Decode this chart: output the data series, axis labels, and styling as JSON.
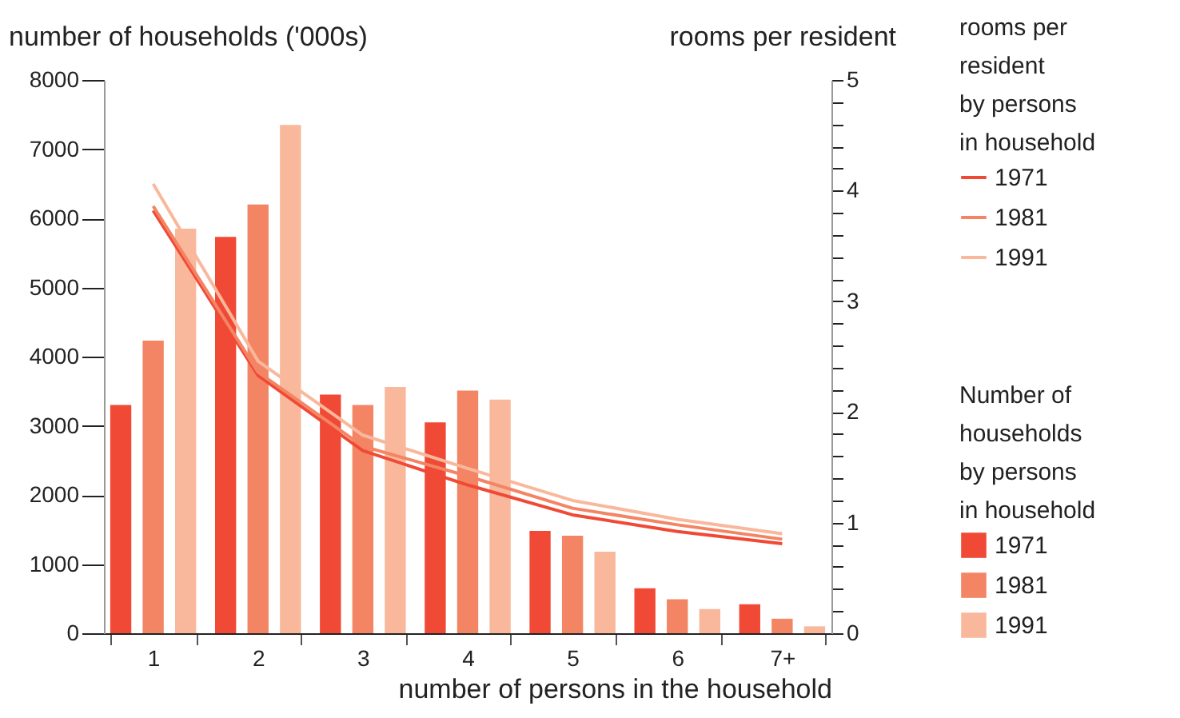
{
  "chart_data": {
    "type": "bar",
    "categories": [
      "1",
      "2",
      "3",
      "4",
      "5",
      "6",
      "7+"
    ],
    "xlabel": "number of persons in the household",
    "ylabel": "number of households ('000s)",
    "y2label": "rooms per resident",
    "legend_title": [
      "rooms per\nresident\nby persons\nin household",
      "Number of\nhouseholds\nby persons\nin household"
    ],
    "ylim": [
      0,
      8000
    ],
    "yticks": [
      0,
      1000,
      2000,
      3000,
      4000,
      5000,
      6000,
      7000,
      8000
    ],
    "y2lim": [
      0,
      5
    ],
    "y2ticks": [
      0,
      {
        "value": 0.2,
        "label": null
      },
      {
        "value": 0.4,
        "label": null
      },
      {
        "value": 0.6,
        "label": null
      },
      {
        "value": 0.8,
        "label": null
      },
      1,
      {
        "value": 1.2,
        "label": null
      },
      {
        "value": 1.4,
        "label": null
      },
      {
        "value": 1.6,
        "label": null
      },
      {
        "value": 1.8,
        "label": null
      },
      2,
      {
        "value": 2.2,
        "label": null
      },
      {
        "value": 2.4,
        "label": null
      },
      {
        "value": 2.6,
        "label": null
      },
      {
        "value": 2.8,
        "label": null
      },
      3,
      {
        "value": 3.2,
        "label": null
      },
      {
        "value": 3.4,
        "label": null
      },
      {
        "value": 3.6,
        "label": null
      },
      {
        "value": 3.8,
        "label": null
      },
      4,
      {
        "value": 4.2,
        "label": null
      },
      {
        "value": 4.4,
        "label": null
      },
      {
        "value": 4.6,
        "label": null
      },
      {
        "value": 4.8,
        "label": null
      },
      5
    ],
    "legend": "right",
    "grid": false,
    "series": [
      {
        "name": "1971",
        "type": "line",
        "axis": "y2",
        "color": "#f04a36",
        "values": [
          3.82,
          2.33,
          1.65,
          1.34,
          1.07,
          0.92,
          0.81
        ]
      },
      {
        "name": "1981",
        "type": "line",
        "axis": "y2",
        "color": "#f38565",
        "values": [
          3.86,
          2.36,
          1.69,
          1.42,
          1.13,
          0.98,
          0.85
        ]
      },
      {
        "name": "1991",
        "type": "line",
        "axis": "y2",
        "color": "#f9b89c",
        "values": [
          4.06,
          2.46,
          1.79,
          1.49,
          1.2,
          1.03,
          0.9
        ]
      },
      {
        "name": "1971",
        "type": "bar",
        "color": "#f04a36",
        "values": [
          3300,
          5730,
          3450,
          3050,
          1480,
          650,
          420
        ]
      },
      {
        "name": "1981",
        "type": "bar",
        "color": "#f38565",
        "values": [
          4230,
          6200,
          3300,
          3510,
          1410,
          490,
          210
        ]
      },
      {
        "name": "1991",
        "type": "bar",
        "color": "#f9b89c",
        "values": [
          5850,
          7350,
          3560,
          3380,
          1180,
          350,
          100
        ]
      }
    ]
  }
}
